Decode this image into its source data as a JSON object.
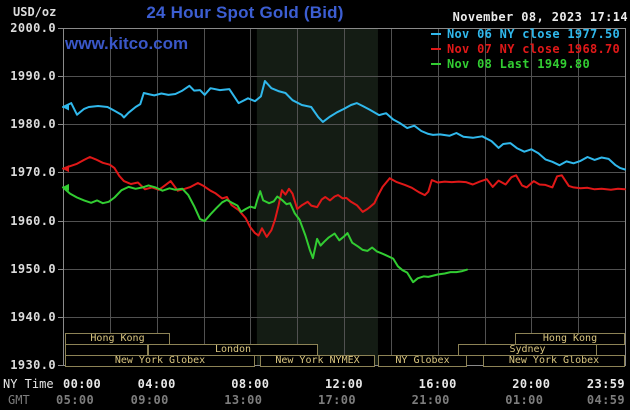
{
  "header": {
    "title": "24 Hour Spot Gold (Bid)",
    "datetime": "November 08, 2023 17:14",
    "unit_label": "USD/oz",
    "watermark": "www.kitco.com"
  },
  "legend": [
    {
      "label": "Nov 06 NY close 1977.50",
      "color": "#30b8ec"
    },
    {
      "label": "Nov 07 NY close 1968.70",
      "color": "#e01818"
    },
    {
      "label": "Nov 08 Last 1949.80",
      "color": "#32cd32"
    }
  ],
  "colors": {
    "background": "#000000",
    "grid": "#515151",
    "border": "#8a8a8a",
    "band": "#141c14",
    "title_blue": "#3c5ed2",
    "watermark_blue": "#3a57c8",
    "tick_white": "#e8e8e8",
    "tick_gray": "#7d7d7d"
  },
  "axes": {
    "x_ny_label": "NY Time",
    "x_gmt_label": "GMT",
    "y_ticks": [
      {
        "v": 2000,
        "label": "2000.0"
      },
      {
        "v": 1990,
        "label": "1990.0"
      },
      {
        "v": 1980,
        "label": "1980.0"
      },
      {
        "v": 1970,
        "label": "1970.0"
      },
      {
        "v": 1960,
        "label": "1960.0"
      },
      {
        "v": 1950,
        "label": "1950.0"
      },
      {
        "v": 1940,
        "label": "1940.0"
      },
      {
        "v": 1930,
        "label": "1930.0"
      }
    ],
    "x_ticks": [
      {
        "t": 0,
        "ny": "00:00",
        "gmt": "05:00"
      },
      {
        "t": 4,
        "ny": "04:00",
        "gmt": "09:00"
      },
      {
        "t": 8,
        "ny": "08:00",
        "gmt": "13:00"
      },
      {
        "t": 12,
        "ny": "12:00",
        "gmt": "17:00"
      },
      {
        "t": 16,
        "ny": "16:00",
        "gmt": "21:00"
      },
      {
        "t": 20,
        "ny": "20:00",
        "gmt": "01:00"
      },
      {
        "t": 24,
        "ny": "23:59",
        "gmt": "04:59"
      }
    ]
  },
  "band": {
    "t0": 8.28,
    "t1": 13.45
  },
  "sessions": [
    {
      "row": 1,
      "label": "Hong Kong",
      "t0": 0.09,
      "t1": 4.57
    },
    {
      "row": 1,
      "label": "Hong Kong",
      "t0": 19.3,
      "t1": 24.0
    },
    {
      "row": 2,
      "label": "",
      "t0": 0.09,
      "t1": 3.63
    },
    {
      "row": 2,
      "label": "London",
      "t0": 3.63,
      "t1": 10.89
    },
    {
      "row": 2,
      "label": "Sydney",
      "t0": 16.87,
      "t1": 22.8
    },
    {
      "row": 3,
      "label": "New York Globex",
      "t0": 0.09,
      "t1": 8.2
    },
    {
      "row": 3,
      "label": "New York NYMEX",
      "t0": 8.41,
      "t1": 13.32
    },
    {
      "row": 3,
      "label": "NY Globex",
      "t0": 13.45,
      "t1": 17.25
    },
    {
      "row": 3,
      "label": "New York Globex",
      "t0": 17.93,
      "t1": 24.0
    }
  ],
  "chart_data": {
    "type": "line",
    "title": "24 Hour Spot Gold (Bid)",
    "xlabel": "NY Time (hours, 00:00-23:59)",
    "ylabel": "USD/oz",
    "xlim": [
      0,
      24
    ],
    "ylim": [
      1930,
      2000
    ],
    "grid": true,
    "legend_position": "top-right",
    "series": [
      {
        "name": "Nov 06",
        "close_label": "NY close 1977.50",
        "color": "#30b8ec",
        "points": [
          [
            0,
            1983.6
          ],
          [
            0.35,
            1984.4
          ],
          [
            0.6,
            1982.0
          ],
          [
            0.9,
            1983.2
          ],
          [
            1.1,
            1983.6
          ],
          [
            1.5,
            1983.8
          ],
          [
            1.9,
            1983.6
          ],
          [
            2.2,
            1982.8
          ],
          [
            2.5,
            1982.0
          ],
          [
            2.6,
            1981.4
          ],
          [
            2.8,
            1982.4
          ],
          [
            3.1,
            1983.6
          ],
          [
            3.3,
            1984.2
          ],
          [
            3.45,
            1986.5
          ],
          [
            3.7,
            1986.2
          ],
          [
            3.9,
            1986.0
          ],
          [
            4.2,
            1986.4
          ],
          [
            4.5,
            1986.1
          ],
          [
            4.8,
            1986.3
          ],
          [
            5.1,
            1987.0
          ],
          [
            5.4,
            1988.0
          ],
          [
            5.6,
            1987.0
          ],
          [
            5.85,
            1987.1
          ],
          [
            6.05,
            1986.1
          ],
          [
            6.3,
            1987.5
          ],
          [
            6.7,
            1987.1
          ],
          [
            7.1,
            1987.3
          ],
          [
            7.5,
            1984.4
          ],
          [
            7.9,
            1985.4
          ],
          [
            8.2,
            1984.8
          ],
          [
            8.45,
            1985.8
          ],
          [
            8.62,
            1989.0
          ],
          [
            8.9,
            1987.5
          ],
          [
            9.2,
            1986.9
          ],
          [
            9.5,
            1986.5
          ],
          [
            9.8,
            1985.0
          ],
          [
            10.2,
            1984.0
          ],
          [
            10.6,
            1983.6
          ],
          [
            10.9,
            1981.5
          ],
          [
            11.1,
            1980.5
          ],
          [
            11.4,
            1981.6
          ],
          [
            11.7,
            1982.5
          ],
          [
            12.0,
            1983.2
          ],
          [
            12.3,
            1984.0
          ],
          [
            12.55,
            1984.4
          ],
          [
            12.8,
            1983.8
          ],
          [
            13.1,
            1983.0
          ],
          [
            13.5,
            1981.9
          ],
          [
            13.8,
            1982.3
          ],
          [
            14.1,
            1981.0
          ],
          [
            14.4,
            1980.2
          ],
          [
            14.7,
            1979.2
          ],
          [
            15.0,
            1979.7
          ],
          [
            15.3,
            1978.6
          ],
          [
            15.6,
            1978.0
          ],
          [
            15.8,
            1977.8
          ],
          [
            16.1,
            1977.9
          ],
          [
            16.5,
            1977.6
          ],
          [
            16.8,
            1978.2
          ],
          [
            17.1,
            1977.4
          ],
          [
            17.5,
            1977.2
          ],
          [
            17.9,
            1977.5
          ],
          [
            18.3,
            1976.5
          ],
          [
            18.6,
            1975.1
          ],
          [
            18.8,
            1975.9
          ],
          [
            19.1,
            1976.1
          ],
          [
            19.4,
            1975.0
          ],
          [
            19.7,
            1974.3
          ],
          [
            20.0,
            1974.8
          ],
          [
            20.3,
            1974.0
          ],
          [
            20.6,
            1972.7
          ],
          [
            20.9,
            1972.2
          ],
          [
            21.2,
            1971.5
          ],
          [
            21.5,
            1972.3
          ],
          [
            21.8,
            1971.9
          ],
          [
            22.1,
            1972.4
          ],
          [
            22.4,
            1973.2
          ],
          [
            22.7,
            1972.6
          ],
          [
            23.0,
            1973.1
          ],
          [
            23.3,
            1972.8
          ],
          [
            23.6,
            1971.5
          ],
          [
            23.8,
            1970.9
          ],
          [
            24,
            1970.6
          ]
        ]
      },
      {
        "name": "Nov 07",
        "close_label": "NY close 1968.70",
        "color": "#e01818",
        "points": [
          [
            0,
            1970.8
          ],
          [
            0.3,
            1971.3
          ],
          [
            0.6,
            1971.8
          ],
          [
            0.9,
            1972.6
          ],
          [
            1.15,
            1973.2
          ],
          [
            1.4,
            1972.7
          ],
          [
            1.7,
            1972.0
          ],
          [
            2.0,
            1971.6
          ],
          [
            2.2,
            1970.9
          ],
          [
            2.4,
            1969.3
          ],
          [
            2.6,
            1968.2
          ],
          [
            2.9,
            1967.6
          ],
          [
            3.2,
            1967.9
          ],
          [
            3.5,
            1966.5
          ],
          [
            3.8,
            1966.9
          ],
          [
            4.1,
            1966.4
          ],
          [
            4.35,
            1967.3
          ],
          [
            4.6,
            1968.2
          ],
          [
            4.9,
            1966.2
          ],
          [
            5.2,
            1966.6
          ],
          [
            5.45,
            1967.0
          ],
          [
            5.76,
            1967.8
          ],
          [
            6.0,
            1967.2
          ],
          [
            6.3,
            1966.2
          ],
          [
            6.5,
            1965.7
          ],
          [
            6.8,
            1964.6
          ],
          [
            7.0,
            1964.9
          ],
          [
            7.2,
            1963.2
          ],
          [
            7.5,
            1962.2
          ],
          [
            7.8,
            1960.5
          ],
          [
            8.0,
            1958.6
          ],
          [
            8.2,
            1957.4
          ],
          [
            8.35,
            1956.9
          ],
          [
            8.5,
            1958.4
          ],
          [
            8.7,
            1956.6
          ],
          [
            8.9,
            1958.0
          ],
          [
            9.05,
            1960.1
          ],
          [
            9.2,
            1963.0
          ],
          [
            9.35,
            1966.3
          ],
          [
            9.5,
            1965.4
          ],
          [
            9.65,
            1966.6
          ],
          [
            9.8,
            1965.6
          ],
          [
            10.0,
            1962.4
          ],
          [
            10.2,
            1963.2
          ],
          [
            10.45,
            1963.9
          ],
          [
            10.6,
            1963.1
          ],
          [
            10.85,
            1962.8
          ],
          [
            11.05,
            1964.4
          ],
          [
            11.2,
            1964.9
          ],
          [
            11.4,
            1964.2
          ],
          [
            11.6,
            1965.0
          ],
          [
            11.75,
            1965.3
          ],
          [
            11.95,
            1964.6
          ],
          [
            12.1,
            1964.7
          ],
          [
            12.3,
            1963.9
          ],
          [
            12.55,
            1963.2
          ],
          [
            12.8,
            1961.8
          ],
          [
            13.0,
            1962.4
          ],
          [
            13.1,
            1962.8
          ],
          [
            13.3,
            1963.6
          ],
          [
            13.4,
            1964.7
          ],
          [
            13.65,
            1967.0
          ],
          [
            13.95,
            1968.8
          ],
          [
            14.25,
            1968.0
          ],
          [
            14.6,
            1967.4
          ],
          [
            14.9,
            1966.8
          ],
          [
            15.2,
            1965.9
          ],
          [
            15.45,
            1965.3
          ],
          [
            15.6,
            1966.0
          ],
          [
            15.75,
            1968.4
          ],
          [
            16.0,
            1967.9
          ],
          [
            16.3,
            1968.1
          ],
          [
            16.6,
            1968.0
          ],
          [
            16.9,
            1968.1
          ],
          [
            17.2,
            1968.0
          ],
          [
            17.5,
            1967.5
          ],
          [
            17.8,
            1968.1
          ],
          [
            18.1,
            1968.6
          ],
          [
            18.35,
            1967.0
          ],
          [
            18.6,
            1968.3
          ],
          [
            18.9,
            1967.5
          ],
          [
            19.15,
            1969.0
          ],
          [
            19.35,
            1969.4
          ],
          [
            19.6,
            1967.3
          ],
          [
            19.8,
            1966.9
          ],
          [
            20.1,
            1968.2
          ],
          [
            20.35,
            1967.5
          ],
          [
            20.6,
            1967.4
          ],
          [
            20.9,
            1966.9
          ],
          [
            21.1,
            1969.2
          ],
          [
            21.3,
            1969.4
          ],
          [
            21.6,
            1967.2
          ],
          [
            21.8,
            1966.9
          ],
          [
            22.1,
            1966.7
          ],
          [
            22.4,
            1966.8
          ],
          [
            22.7,
            1966.5
          ],
          [
            23.0,
            1966.6
          ],
          [
            23.4,
            1966.4
          ],
          [
            23.7,
            1966.6
          ],
          [
            24,
            1966.5
          ]
        ]
      },
      {
        "name": "Nov 08",
        "close_label": "Last 1949.80",
        "color": "#32cd32",
        "points": [
          [
            0,
            1966.9
          ],
          [
            0.3,
            1965.6
          ],
          [
            0.6,
            1964.8
          ],
          [
            0.9,
            1964.2
          ],
          [
            1.2,
            1963.7
          ],
          [
            1.45,
            1964.2
          ],
          [
            1.7,
            1963.6
          ],
          [
            1.95,
            1963.9
          ],
          [
            2.2,
            1964.8
          ],
          [
            2.5,
            1966.3
          ],
          [
            2.8,
            1967.0
          ],
          [
            3.1,
            1966.6
          ],
          [
            3.4,
            1966.9
          ],
          [
            3.65,
            1967.3
          ],
          [
            3.95,
            1966.9
          ],
          [
            4.25,
            1966.2
          ],
          [
            4.55,
            1966.7
          ],
          [
            4.8,
            1966.4
          ],
          [
            5.1,
            1966.6
          ],
          [
            5.35,
            1965.3
          ],
          [
            5.6,
            1963.0
          ],
          [
            5.85,
            1960.3
          ],
          [
            6.05,
            1959.9
          ],
          [
            6.3,
            1961.3
          ],
          [
            6.55,
            1962.6
          ],
          [
            6.8,
            1963.8
          ],
          [
            7.0,
            1964.3
          ],
          [
            7.25,
            1963.6
          ],
          [
            7.45,
            1963.1
          ],
          [
            7.6,
            1961.8
          ],
          [
            7.8,
            1962.4
          ],
          [
            8.0,
            1962.9
          ],
          [
            8.2,
            1962.6
          ],
          [
            8.3,
            1964.4
          ],
          [
            8.42,
            1966.1
          ],
          [
            8.55,
            1964.2
          ],
          [
            8.8,
            1963.6
          ],
          [
            9.0,
            1964.0
          ],
          [
            9.15,
            1965.0
          ],
          [
            9.35,
            1964.3
          ],
          [
            9.55,
            1963.4
          ],
          [
            9.7,
            1963.6
          ],
          [
            9.9,
            1961.5
          ],
          [
            10.1,
            1960.2
          ],
          [
            10.35,
            1956.9
          ],
          [
            10.55,
            1953.8
          ],
          [
            10.67,
            1952.2
          ],
          [
            10.85,
            1956.2
          ],
          [
            11.0,
            1954.8
          ],
          [
            11.15,
            1955.6
          ],
          [
            11.35,
            1956.5
          ],
          [
            11.6,
            1957.3
          ],
          [
            11.8,
            1955.9
          ],
          [
            12.0,
            1956.7
          ],
          [
            12.15,
            1957.4
          ],
          [
            12.35,
            1955.4
          ],
          [
            12.6,
            1954.6
          ],
          [
            12.8,
            1953.9
          ],
          [
            13.0,
            1953.7
          ],
          [
            13.2,
            1954.4
          ],
          [
            13.4,
            1953.6
          ],
          [
            13.55,
            1953.3
          ],
          [
            13.75,
            1952.9
          ],
          [
            14.1,
            1952.1
          ],
          [
            14.3,
            1950.5
          ],
          [
            14.5,
            1949.7
          ],
          [
            14.7,
            1949.2
          ],
          [
            14.95,
            1947.2
          ],
          [
            15.15,
            1948.0
          ],
          [
            15.4,
            1948.4
          ],
          [
            15.6,
            1948.3
          ],
          [
            16.0,
            1948.8
          ],
          [
            16.3,
            1949.0
          ],
          [
            16.55,
            1949.3
          ],
          [
            16.8,
            1949.3
          ],
          [
            17.05,
            1949.5
          ],
          [
            17.25,
            1949.8
          ]
        ]
      }
    ]
  }
}
